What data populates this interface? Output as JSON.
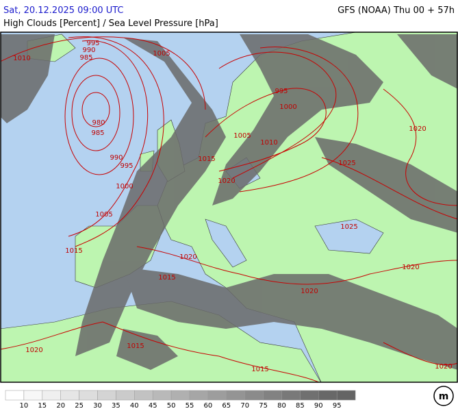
{
  "header": {
    "left": "Sat, 20.12.2025 09:00 UTC",
    "right": "GFS (NOAA) Thu 00 + 57h",
    "subtitle": "High Clouds [Percent] / Sea Level Pressure [hPa]"
  },
  "isobars": {
    "labels": [
      "1010",
      "995",
      "990",
      "985",
      "1005",
      "980",
      "985",
      "990",
      "995",
      "1000",
      "1005",
      "1015",
      "995",
      "1000",
      "1005",
      "1010",
      "1015",
      "1020",
      "1020",
      "1025",
      "1025",
      "1020",
      "1020",
      "1015",
      "1020",
      "1015",
      "1015",
      "1020",
      "1020"
    ]
  },
  "legend": {
    "levels": [
      10,
      15,
      20,
      25,
      30,
      35,
      40,
      45,
      50,
      55,
      60,
      65,
      70,
      75,
      80,
      85,
      90,
      95
    ],
    "colors": [
      "#ffffff",
      "#f7f7f7",
      "#efefef",
      "#e6e6e6",
      "#dddddd",
      "#d4d4d4",
      "#cbcbcb",
      "#c2c2c2",
      "#b9b9b9",
      "#b0b0b0",
      "#a6a6a6",
      "#9d9d9d",
      "#949494",
      "#8b8b8b",
      "#828282",
      "#797979",
      "#707070",
      "#686868",
      "#646464"
    ]
  },
  "logo": "m"
}
